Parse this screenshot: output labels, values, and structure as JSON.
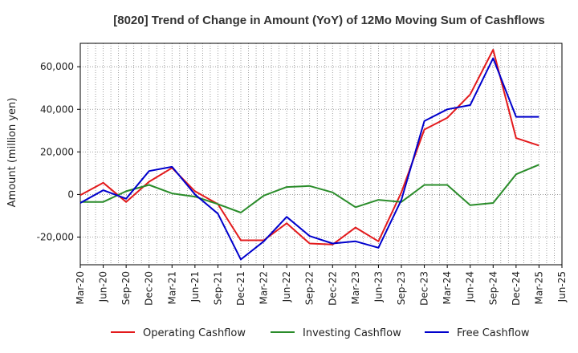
{
  "chart_data": {
    "type": "line",
    "title": "[8020]  Trend of Change in Amount (YoY) of 12Mo Moving Sum of Cashflows",
    "xlabel": "",
    "ylabel": "Amount (million yen)",
    "ylim": [
      -33000,
      71000
    ],
    "yticks": [
      -20000,
      0,
      20000,
      40000,
      60000
    ],
    "ytick_labels": [
      "-20,000",
      "0",
      "20,000",
      "40,000",
      "60,000"
    ],
    "xtick_labels": [
      "Mar-20",
      "Jun-20",
      "Sep-20",
      "Dec-20",
      "Mar-21",
      "Jun-21",
      "Sep-21",
      "Dec-21",
      "Mar-22",
      "Jun-22",
      "Sep-22",
      "Dec-22",
      "Mar-23",
      "Jun-23",
      "Sep-23",
      "Dec-23",
      "Mar-24",
      "Jun-24",
      "Sep-24",
      "Dec-24",
      "Mar-25",
      "Jun-25"
    ],
    "x": [
      "Mar-20",
      "Jun-20",
      "Sep-20",
      "Dec-20",
      "Mar-21",
      "Jun-21",
      "Sep-21",
      "Dec-21",
      "Mar-22",
      "Jun-22",
      "Sep-22",
      "Dec-22",
      "Mar-23",
      "Jun-23",
      "Sep-23",
      "Dec-23",
      "Mar-24",
      "Jun-24",
      "Sep-24",
      "Dec-24",
      "Mar-25"
    ],
    "grid": true,
    "legend_position": "bottom",
    "series": [
      {
        "name": "Operating Cashflow",
        "color": "#e31a1c",
        "values": [
          -300,
          5500,
          -3500,
          6000,
          12500,
          1500,
          -4500,
          -21500,
          -21500,
          -13500,
          -23000,
          -23500,
          -15500,
          -22000,
          1000,
          30500,
          36000,
          47000,
          68000,
          26500,
          23000
        ]
      },
      {
        "name": "Investing Cashflow",
        "color": "#2a8c2a",
        "values": [
          -3500,
          -3500,
          1500,
          4500,
          500,
          -1000,
          -4500,
          -8500,
          -500,
          3500,
          4000,
          1000,
          -6000,
          -2500,
          -3500,
          4500,
          4500,
          -5000,
          -4000,
          9500,
          14000
        ]
      },
      {
        "name": "Free Cashflow",
        "color": "#0000cc",
        "values": [
          -4000,
          2000,
          -2000,
          11000,
          13000,
          0,
          -9000,
          -30500,
          -22000,
          -10500,
          -19500,
          -23000,
          -22000,
          -25000,
          -2500,
          34500,
          40000,
          42000,
          64000,
          36500,
          36500
        ]
      }
    ]
  }
}
